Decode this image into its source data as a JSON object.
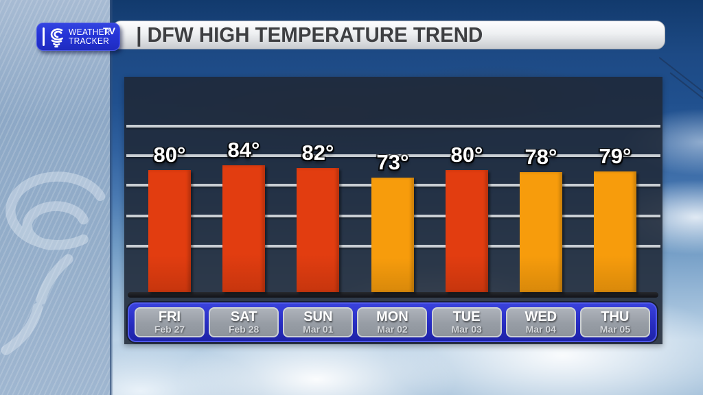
{
  "logo": {
    "brand_line1": "WEATHER",
    "brand_line2": "TRACKER",
    "badge": "TV",
    "icon": "tornado-icon"
  },
  "header": {
    "title": "| DFW HIGH TEMPERATURE TREND"
  },
  "chart_data": {
    "type": "bar",
    "title": "DFW HIGH TEMPERATURE TREND",
    "categories": [
      "FRI",
      "SAT",
      "SUN",
      "MON",
      "TUE",
      "WED",
      "THU"
    ],
    "dates": [
      "Feb 27",
      "Feb 28",
      "Mar 01",
      "Mar 02",
      "Mar 03",
      "Mar 04",
      "Mar 05"
    ],
    "values": [
      80,
      84,
      82,
      73,
      80,
      78,
      79
    ],
    "value_labels": [
      "80°",
      "84°",
      "82°",
      "73°",
      "80°",
      "78°",
      "79°"
    ],
    "unit": "°",
    "bar_colors": [
      "#e23d10",
      "#e23d10",
      "#e23d10",
      "#f79c0c",
      "#e23d10",
      "#f79c0c",
      "#f79c0c"
    ],
    "xlabel": "",
    "ylabel": "",
    "grid": "5 horizontal gridlines, no tick labels",
    "legend": "none"
  },
  "colors": {
    "bar_hot": "#e23d10",
    "bar_warm": "#f79c0c",
    "logo_blue": "#2635d8",
    "day_strip_blue": "#272cc0",
    "day_cell_gray": "#979da5",
    "panel_bg": "#1f2837",
    "gridline": "#c9ced3",
    "header_band_blue": "#1d4a85",
    "title_text": "#3e3f42"
  }
}
